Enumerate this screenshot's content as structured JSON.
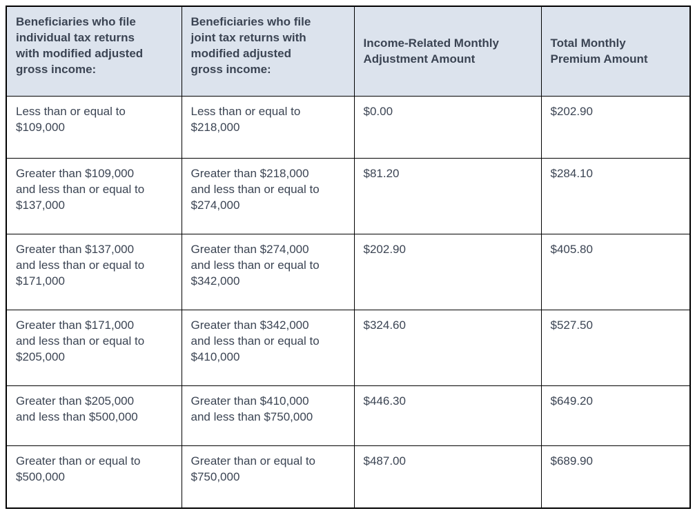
{
  "colors": {
    "header_background": "#dce3ed",
    "border": "#000000",
    "text": "#3b4453",
    "page_background": "#ffffff"
  },
  "table": {
    "columns": [
      {
        "key": "individual",
        "label": "Beneficiaries who file\nindividual tax returns\nwith modified adjusted\ngross income:"
      },
      {
        "key": "joint",
        "label": "Beneficiaries who file\njoint tax returns with\nmodified adjusted\ngross income:"
      },
      {
        "key": "adjustment",
        "label": "Income-Related Monthly\nAdjustment Amount"
      },
      {
        "key": "total",
        "label": "Total Monthly\nPremium Amount"
      }
    ],
    "rows": [
      {
        "individual": "Less than or equal to\n$109,000",
        "joint": "Less than or equal to\n$218,000",
        "adjustment": "$0.00",
        "total": "$202.90"
      },
      {
        "individual": "Greater than $109,000\nand less than or equal to\n$137,000",
        "joint": "Greater than $218,000\nand less than or equal to\n$274,000",
        "adjustment": "$81.20",
        "total": "$284.10"
      },
      {
        "individual": "Greater than $137,000\nand less than or equal to\n$171,000",
        "joint": "Greater than $274,000\nand less than or equal to\n$342,000",
        "adjustment": "$202.90",
        "total": "$405.80"
      },
      {
        "individual": "Greater than $171,000\nand less than or equal to\n$205,000",
        "joint": "Greater than $342,000\nand less than or equal to\n$410,000",
        "adjustment": "$324.60",
        "total": "$527.50"
      },
      {
        "individual": "Greater than $205,000\nand less than $500,000",
        "joint": "Greater than $410,000\nand less than $750,000",
        "adjustment": "$446.30",
        "total": "$649.20"
      },
      {
        "individual": "Greater than or equal to\n$500,000",
        "joint": "Greater than or equal to\n$750,000",
        "adjustment": "$487.00",
        "total": "$689.90"
      }
    ]
  }
}
